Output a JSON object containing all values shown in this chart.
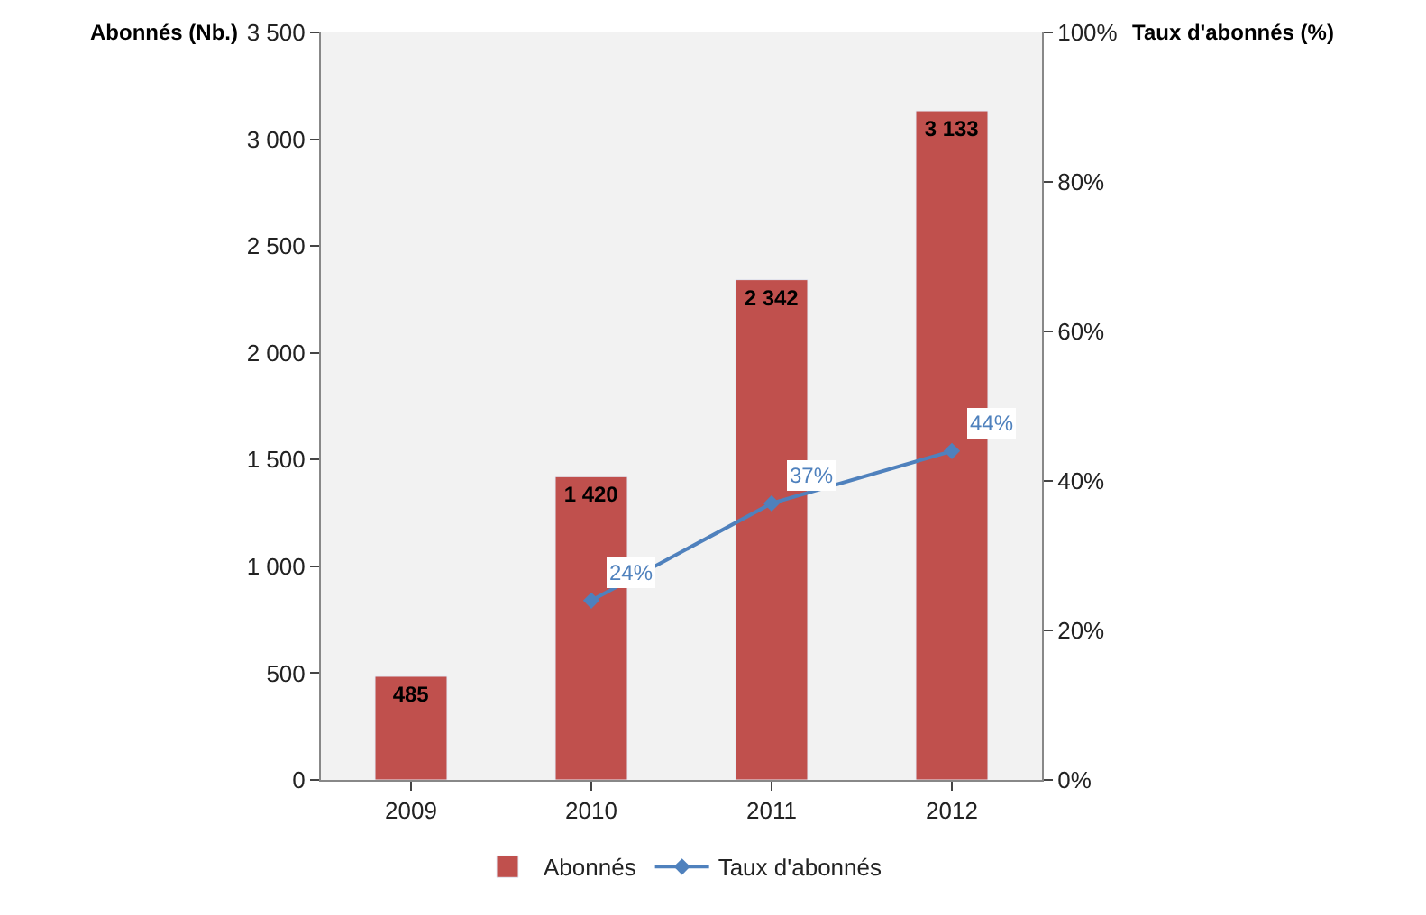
{
  "chart_data": {
    "type": "bar",
    "categories": [
      "2009",
      "2010",
      "2011",
      "2012"
    ],
    "ylabel": "Abonnés (Nb.)",
    "y2label": "Taux d'abonnés (%)",
    "series": [
      {
        "name": "Abonnés",
        "color": "#c0504d",
        "values": [
          485,
          1420,
          2342,
          3133
        ],
        "value_labels": [
          "485",
          "1 420",
          "2 342",
          "3 133"
        ]
      },
      {
        "name": "Taux d'abonnés",
        "type": "line",
        "axis": "y2",
        "color": "#4f81bd",
        "values": [
          null,
          24,
          37,
          44
        ],
        "value_labels": [
          null,
          "24%",
          "37%",
          "44%"
        ]
      }
    ],
    "ylim": [
      0,
      3500
    ],
    "yticks": [
      {
        "value": 0,
        "label": "0"
      },
      {
        "value": 500,
        "label": "500"
      },
      {
        "value": 1000,
        "label": "1 000"
      },
      {
        "value": 1500,
        "label": "1 500"
      },
      {
        "value": 2000,
        "label": "2 000"
      },
      {
        "value": 2500,
        "label": "2 500"
      },
      {
        "value": 3000,
        "label": "3 000"
      },
      {
        "value": 3500,
        "label": "3 500"
      }
    ],
    "y2lim": [
      0,
      100
    ],
    "y2ticks": [
      {
        "value": 0,
        "label": "0%"
      },
      {
        "value": 20,
        "label": "20%"
      },
      {
        "value": 40,
        "label": "40%"
      },
      {
        "value": 60,
        "label": "60%"
      },
      {
        "value": 80,
        "label": "80%"
      },
      {
        "value": 100,
        "label": "100%"
      }
    ],
    "legend": "bottom",
    "marker": "diamond",
    "grid": false
  }
}
